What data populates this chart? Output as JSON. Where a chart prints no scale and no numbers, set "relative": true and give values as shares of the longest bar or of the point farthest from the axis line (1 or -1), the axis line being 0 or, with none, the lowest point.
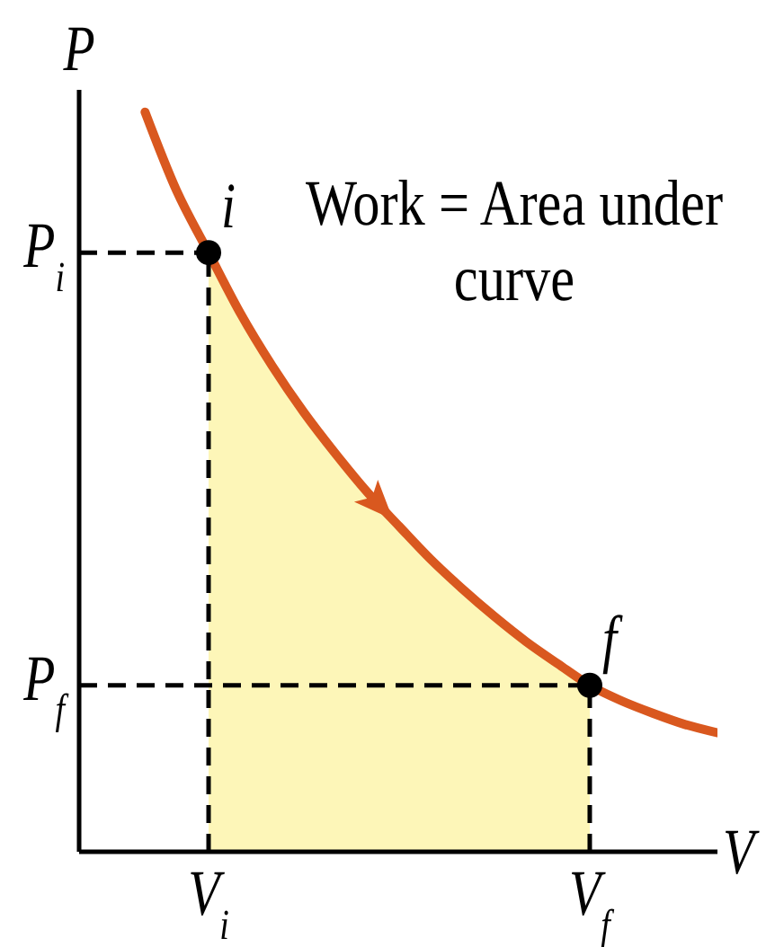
{
  "chart_data": {
    "type": "line",
    "relative": true,
    "xlabel": "V",
    "ylabel": "P",
    "categories": [
      null,
      null,
      "V$_{i}$",
      null,
      null,
      null,
      null,
      null,
      null,
      null,
      null,
      null,
      null,
      null,
      "V$_{f}$",
      null,
      null,
      null,
      null
    ],
    "series": [
      {
        "type": "area",
        "color": "#fdf6b8",
        "values": [
          null,
          null,
          0.81,
          0.728,
          0.657,
          0.594,
          0.538,
          0.486,
          0.44,
          0.395,
          0.355,
          0.318,
          0.284,
          0.254,
          0.225,
          null,
          null,
          null,
          null
        ]
      },
      {
        "color": "#d9581f",
        "marker": "none",
        "values": [
          1.0,
          0.893,
          0.81,
          0.728,
          0.657,
          0.594,
          0.538,
          0.486,
          0.44,
          0.395,
          0.355,
          0.318,
          0.284,
          0.254,
          0.225,
          0.204,
          0.187,
          0.172,
          0.161
        ]
      },
      {
        "type": "lollipop",
        "color": "#000000",
        "marker": "circle",
        "line_style": "dashed",
        "values": [
          null,
          null,
          0.81,
          null,
          null,
          null,
          null,
          null,
          null,
          null,
          null,
          null,
          null,
          null,
          0.225,
          null,
          null,
          null,
          null
        ]
      }
    ],
    "ref_lines": [
      {
        "axis": "y",
        "value": 0.81,
        "label": "P$_{i}$",
        "line_style": "dashed",
        "color": "#000000"
      },
      {
        "axis": "y",
        "value": 0.225,
        "label": "P$_{f}$",
        "line_style": "dashed",
        "color": "#000000"
      }
    ],
    "annotations": [
      {
        "text": "i",
        "x": "V$_{i}$",
        "y": 0.81
      },
      {
        "text": "f",
        "x": "V$_{f}$",
        "y": 0.225
      },
      "Work = Area under curve"
    ]
  }
}
